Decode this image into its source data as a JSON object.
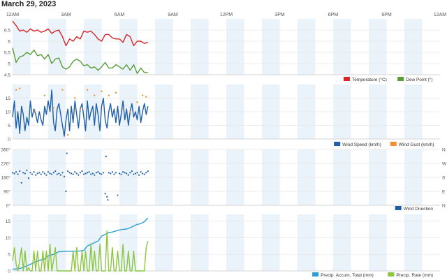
{
  "page": {
    "title": "March 29, 2023"
  },
  "colors": {
    "temperature": "#d62728",
    "dew_point": "#5a9e3a",
    "wind_speed": "#1f5fa8",
    "wind_gust": "#f28e2b",
    "wind_direction": "#1f5fa8",
    "precip_accum": "#2e9fd6",
    "precip_rate": "#8cc63f",
    "band": "#eaf2fa",
    "grid": "#e6e6e6"
  },
  "chart_data": [
    {
      "type": "line",
      "x_ticks": [
        "12AM",
        "3AM",
        "6AM",
        "9AM",
        "12PM",
        "3PM",
        "6PM",
        "9PM",
        "12AM"
      ],
      "x_unit": "hours",
      "xlim": [
        0,
        24
      ],
      "ylim": [
        4.5,
        7.0
      ],
      "y_ticks": [
        "4.5",
        "5",
        "5.5",
        "6",
        "6.5"
      ],
      "legend": "bottom-right",
      "series": [
        {
          "name": "Temperature (°C)",
          "color": "#d62728",
          "x": [
            0,
            0.2,
            0.4,
            0.6,
            0.8,
            1.0,
            1.2,
            1.4,
            1.6,
            1.8,
            2.0,
            2.2,
            2.4,
            2.6,
            2.8,
            3.0,
            3.2,
            3.4,
            3.6,
            3.8,
            4.0,
            4.2,
            4.4,
            4.6,
            4.8,
            5.0,
            5.2,
            5.4,
            5.6,
            5.8,
            6.0,
            6.2,
            6.4,
            6.6,
            6.8,
            7.0,
            7.2,
            7.4,
            7.6
          ],
          "values": [
            6.9,
            6.7,
            6.45,
            6.5,
            6.4,
            6.55,
            6.45,
            6.5,
            6.4,
            6.45,
            6.55,
            6.35,
            6.45,
            6.5,
            6.2,
            5.8,
            6.1,
            6.0,
            6.2,
            6.1,
            6.45,
            6.4,
            6.45,
            6.3,
            6.1,
            6.0,
            6.3,
            6.3,
            6.15,
            6.1,
            6.1,
            5.95,
            6.3,
            6.2,
            5.8,
            6.0,
            6.0,
            5.9,
            5.95
          ]
        },
        {
          "name": "Dew Point (°)",
          "color": "#5a9e3a",
          "x": [
            0,
            0.2,
            0.4,
            0.6,
            0.8,
            1.0,
            1.2,
            1.4,
            1.6,
            1.8,
            2.0,
            2.2,
            2.4,
            2.6,
            2.8,
            3.0,
            3.2,
            3.4,
            3.6,
            3.8,
            4.0,
            4.2,
            4.4,
            4.6,
            4.8,
            5.0,
            5.2,
            5.4,
            5.6,
            5.8,
            6.0,
            6.2,
            6.4,
            6.6,
            6.8,
            7.0,
            7.2,
            7.4,
            7.6
          ],
          "values": [
            5.7,
            5.05,
            5.3,
            5.35,
            5.5,
            5.4,
            5.6,
            5.35,
            5.4,
            5.2,
            5.4,
            5.0,
            5.2,
            5.25,
            4.85,
            4.75,
            4.85,
            5.1,
            5.2,
            5.1,
            4.9,
            4.95,
            4.8,
            4.85,
            4.7,
            4.85,
            5.05,
            4.8,
            4.8,
            4.95,
            4.85,
            4.75,
            4.95,
            4.7,
            4.95,
            4.55,
            4.8,
            4.6,
            4.6
          ]
        }
      ]
    },
    {
      "type": "line",
      "xlim": [
        0,
        24
      ],
      "ylim": [
        0,
        20
      ],
      "y_ticks": [
        "0",
        "5",
        "10",
        "15"
      ],
      "legend": "bottom-right",
      "series": [
        {
          "name": "Wind Speed (km/h)",
          "color": "#1f5fa8",
          "x": [
            0,
            0.1,
            0.2,
            0.3,
            0.4,
            0.5,
            0.6,
            0.7,
            0.8,
            0.9,
            1.0,
            1.1,
            1.2,
            1.3,
            1.4,
            1.5,
            1.6,
            1.7,
            1.8,
            1.9,
            2.0,
            2.1,
            2.2,
            2.3,
            2.4,
            2.5,
            2.6,
            2.7,
            2.8,
            2.9,
            3.0,
            3.1,
            3.2,
            3.3,
            3.4,
            3.5,
            3.6,
            3.7,
            3.8,
            3.9,
            4.0,
            4.1,
            4.2,
            4.3,
            4.4,
            4.5,
            4.6,
            4.7,
            4.8,
            4.9,
            5.0,
            5.1,
            5.2,
            5.3,
            5.4,
            5.5,
            5.6,
            5.7,
            5.8,
            5.9,
            6.0,
            6.1,
            6.2,
            6.3,
            6.4,
            6.5,
            6.6,
            6.7,
            6.8,
            6.9,
            7.0,
            7.1,
            7.2,
            7.3,
            7.4,
            7.5,
            7.6
          ],
          "values": [
            8,
            14,
            4,
            10,
            2,
            12,
            9,
            3,
            8,
            5,
            14,
            8,
            11,
            9,
            6,
            10,
            7,
            5,
            12,
            9,
            14,
            10,
            18,
            6,
            3,
            11,
            13,
            9,
            5,
            1,
            7,
            11,
            3,
            12,
            6,
            14,
            9,
            4,
            11,
            13,
            8,
            3,
            14,
            7,
            10,
            12,
            5,
            13,
            9,
            3,
            12,
            15,
            7,
            4,
            10,
            13,
            8,
            11,
            6,
            12,
            5,
            9,
            14,
            7,
            11,
            5,
            10,
            13,
            8,
            10,
            7,
            12,
            6,
            10,
            13,
            9,
            12
          ]
        },
        {
          "name": "Wind Gust (km/h)",
          "color": "#f28e2b",
          "x": [
            0.2,
            0.4,
            1.2,
            1.8,
            2.3,
            2.8,
            3.1,
            3.5,
            3.8,
            4.2,
            4.6,
            5.0,
            5.4,
            5.8,
            6.2,
            6.6,
            7.0,
            7.3,
            7.5
          ],
          "values": [
            18,
            18.5,
            10,
            16,
            11.5,
            18,
            1.5,
            15,
            11,
            18,
            16,
            17.5,
            16,
            17,
            11,
            10,
            13.5,
            16,
            15.5
          ]
        }
      ]
    },
    {
      "type": "scatter",
      "xlim": [
        0,
        24
      ],
      "ylim": [
        0,
        360
      ],
      "y_ticks": [
        "0°",
        "90°",
        "180°",
        "270°",
        "360°"
      ],
      "right_labels": [
        "N",
        "W",
        "S",
        "E",
        "N"
      ],
      "legend": "bottom-right",
      "series": [
        {
          "name": "Wind Direction",
          "color": "#1f5fa8",
          "x": [
            0,
            0.1,
            0.2,
            0.3,
            0.4,
            0.5,
            0.6,
            0.7,
            0.8,
            0.9,
            1.0,
            1.1,
            1.2,
            1.3,
            1.4,
            1.5,
            1.6,
            1.7,
            1.8,
            1.9,
            2.0,
            2.1,
            2.2,
            2.3,
            2.4,
            2.5,
            2.6,
            2.7,
            2.8,
            2.9,
            3.0,
            3.05,
            3.1,
            3.2,
            3.3,
            3.4,
            3.5,
            3.6,
            3.7,
            3.8,
            3.9,
            4.0,
            4.1,
            4.2,
            4.3,
            4.4,
            4.5,
            4.6,
            4.7,
            4.8,
            4.9,
            5.0,
            5.1,
            5.2,
            5.25,
            5.3,
            5.35,
            5.4,
            5.5,
            5.6,
            5.7,
            5.8,
            5.9,
            6.0,
            6.1,
            6.2,
            6.3,
            6.4,
            6.5,
            6.6,
            6.7,
            6.8,
            6.9,
            7.0,
            7.1,
            7.2,
            7.3,
            7.4,
            7.5,
            7.6
          ],
          "values": [
            210,
            205,
            215,
            200,
            220,
            145,
            210,
            205,
            225,
            175,
            210,
            200,
            215,
            195,
            205,
            210,
            200,
            215,
            205,
            195,
            215,
            205,
            200,
            210,
            220,
            200,
            205,
            195,
            210,
            185,
            90,
            335,
            220,
            210,
            205,
            200,
            215,
            205,
            195,
            210,
            220,
            200,
            205,
            210,
            215,
            200,
            205,
            195,
            210,
            215,
            205,
            200,
            210,
            75,
            315,
            55,
            35,
            210,
            205,
            215,
            200,
            210,
            65,
            205,
            200,
            215,
            210,
            205,
            195,
            210,
            220,
            200,
            205,
            210,
            195,
            215,
            205,
            200,
            210,
            220
          ]
        }
      ]
    },
    {
      "type": "line",
      "xlim": [
        0,
        24
      ],
      "ylim": [
        0,
        17
      ],
      "y_ticks": [
        "0",
        "5",
        "10",
        "15"
      ],
      "legend": "bottom-right",
      "series": [
        {
          "name": "Precip. Accum. Total (mm)",
          "color": "#2e9fd6",
          "x": [
            0,
            0.4,
            0.8,
            1.0,
            1.4,
            1.8,
            2.0,
            2.3,
            2.6,
            3.0,
            3.4,
            3.8,
            4.0,
            4.2,
            4.4,
            4.6,
            4.8,
            5.0,
            5.2,
            5.4,
            5.6,
            5.8,
            6.0,
            6.2,
            6.4,
            6.6,
            6.8,
            7.0,
            7.2,
            7.4,
            7.6
          ],
          "values": [
            0.5,
            0.7,
            1.5,
            2.0,
            3.0,
            3.6,
            4.5,
            5.0,
            5.8,
            5.9,
            5.9,
            6.0,
            6.2,
            7.5,
            8.0,
            8.5,
            9.0,
            10.5,
            11.0,
            11.5,
            11.7,
            12.0,
            12.3,
            12.5,
            12.6,
            13.0,
            13.5,
            14.0,
            14.2,
            14.8,
            16.0
          ]
        },
        {
          "name": "Precip. Rate (mm)",
          "color": "#8cc63f",
          "x": [
            0,
            0.1,
            0.2,
            0.3,
            0.4,
            0.5,
            0.6,
            0.7,
            0.8,
            0.9,
            1.0,
            1.1,
            1.2,
            1.3,
            1.4,
            1.5,
            1.6,
            1.7,
            1.8,
            1.9,
            2.0,
            2.1,
            2.2,
            2.3,
            2.4,
            2.5,
            2.6,
            2.7,
            2.8,
            2.9,
            3.0,
            3.1,
            3.2,
            3.3,
            3.4,
            3.5,
            3.6,
            3.7,
            3.8,
            3.9,
            4.0,
            4.1,
            4.2,
            4.3,
            4.4,
            4.5,
            4.6,
            4.7,
            4.8,
            4.9,
            5.0,
            5.1,
            5.2,
            5.3,
            5.4,
            5.5,
            5.6,
            5.7,
            5.8,
            5.9,
            6.0,
            6.1,
            6.2,
            6.3,
            6.4,
            6.5,
            6.6,
            6.7,
            6.8,
            6.9,
            7.0,
            7.1,
            7.2,
            7.3,
            7.4,
            7.5,
            7.6
          ],
          "values": [
            3,
            7,
            2,
            0,
            3,
            7,
            0,
            6,
            0,
            1,
            0,
            0,
            6,
            0,
            6,
            0,
            0,
            6,
            0,
            6,
            0,
            8,
            0,
            3,
            7,
            0,
            0,
            0,
            0,
            0,
            0,
            0,
            0,
            0,
            6,
            0,
            7,
            0,
            0,
            6,
            0,
            6,
            0,
            0,
            8,
            0,
            6,
            0,
            0,
            8,
            0,
            0,
            0,
            12,
            0,
            0,
            7,
            0,
            0,
            6,
            0,
            0,
            8,
            0,
            0,
            6,
            0,
            0,
            6,
            0,
            0,
            0,
            0,
            0,
            0,
            7,
            9
          ]
        }
      ]
    }
  ]
}
